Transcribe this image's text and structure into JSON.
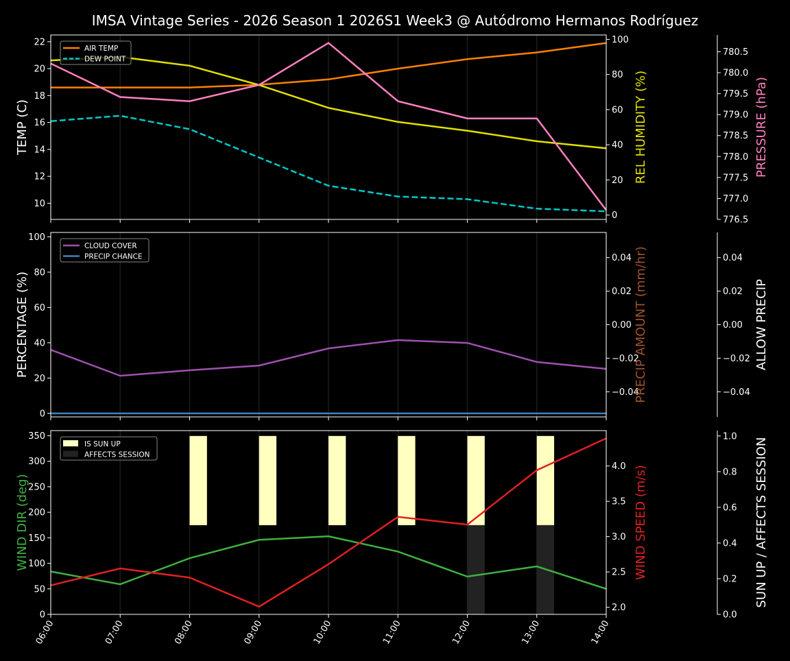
{
  "title": "IMSA Vintage Series - 2026 Season 1 2026S1 Week3 @ Autódromo Hermanos Rodríguez",
  "chart_data": [
    {
      "type": "line",
      "x": [
        "06:00",
        "07:00",
        "08:00",
        "09:00",
        "10:00",
        "11:00",
        "12:00",
        "13:00",
        "14:00"
      ],
      "left_axis": {
        "label": "TEMP (C)",
        "ylim": [
          8.8,
          22.5
        ],
        "ticks": [
          10,
          12,
          14,
          16,
          18,
          20,
          22
        ],
        "color": "#ffffff"
      },
      "right_axis": {
        "label": "REL HUMIDITY (%)",
        "ylim": [
          -2.5,
          102.5
        ],
        "ticks": [
          0,
          20,
          40,
          60,
          80,
          100
        ],
        "color": "#e0e000"
      },
      "right_axis_2": {
        "label": "PRESSURE (hPa)",
        "ylim": [
          776.5,
          780.9
        ],
        "ticks": [
          776.5,
          777.0,
          777.5,
          778.0,
          778.5,
          779.0,
          779.5,
          780.0,
          780.5
        ],
        "color": "#ff80c0"
      },
      "legend": {
        "placement": "top-left",
        "entries": [
          "AIR TEMP",
          "DEW POINT"
        ]
      },
      "grid": "vertical",
      "series": [
        {
          "name": "AIR TEMP",
          "axis": "left",
          "color": "#ff8000",
          "dash": false,
          "values": [
            18.6,
            18.6,
            18.6,
            18.8,
            19.2,
            20.0,
            20.7,
            21.2,
            21.9
          ]
        },
        {
          "name": "DEW POINT",
          "axis": "left",
          "color": "#00c8c8",
          "dash": true,
          "values": [
            16.1,
            16.5,
            15.5,
            13.4,
            11.3,
            10.5,
            10.3,
            9.6,
            9.4
          ]
        },
        {
          "axis": "right",
          "color": "#e0e000",
          "dash": false,
          "values": [
            88,
            90,
            85,
            74,
            61,
            53,
            48,
            42,
            38
          ]
        },
        {
          "axis": "right2",
          "color": "#ff80c0",
          "dash": false,
          "values": [
            780.22,
            779.42,
            779.32,
            779.71,
            780.71,
            779.32,
            778.91,
            778.91,
            776.72
          ]
        }
      ]
    },
    {
      "type": "line",
      "x": [
        "06:00",
        "07:00",
        "08:00",
        "09:00",
        "10:00",
        "11:00",
        "12:00",
        "13:00",
        "14:00"
      ],
      "left_axis": {
        "label": "PERCENTAGE (%)",
        "ylim": [
          -2,
          102.5
        ],
        "ticks": [
          0,
          20,
          40,
          60,
          80,
          100
        ],
        "color": "#ffffff"
      },
      "right_axis": {
        "label": "PRECIP AMOUNT (mm/hr)",
        "ylim": [
          -0.055,
          0.055
        ],
        "ticks": [
          -0.04,
          -0.02,
          0.0,
          0.02,
          0.04
        ],
        "tick_labels": [
          "−0.04",
          "−0.02",
          "0.00",
          "0.02",
          "0.04"
        ],
        "color": "#a0522d"
      },
      "right_axis_2": {
        "label": "ALLOW PRECIP",
        "ylim": [
          -0.055,
          0.055
        ],
        "ticks": [
          -0.04,
          -0.02,
          0.0,
          0.02,
          0.04
        ],
        "tick_labels": [
          "−0.04",
          "−0.02",
          "0.00",
          "0.02",
          "0.04"
        ],
        "color": "#ffffff"
      },
      "legend": {
        "placement": "top-left",
        "entries": [
          "CLOUD COVER",
          "PRECIP CHANCE"
        ]
      },
      "grid": "vertical",
      "series": [
        {
          "name": "CLOUD COVER",
          "axis": "left",
          "color": "#a050b0",
          "dash": false,
          "values": [
            36.0,
            21.3,
            24.4,
            27.1,
            36.8,
            41.5,
            39.9,
            29.1,
            25.2
          ]
        },
        {
          "name": "PRECIP CHANCE",
          "axis": "left",
          "color": "#4080c0",
          "dash": false,
          "values": [
            0,
            0,
            0,
            0,
            0,
            0,
            0,
            0,
            0
          ]
        }
      ]
    },
    {
      "type": "line",
      "x": [
        "06:00",
        "07:00",
        "08:00",
        "09:00",
        "10:00",
        "11:00",
        "12:00",
        "13:00",
        "14:00"
      ],
      "left_axis": {
        "label": "WIND DIR (deg)",
        "ylim": [
          0,
          360
        ],
        "ticks": [
          0,
          50,
          100,
          150,
          200,
          250,
          300,
          350
        ],
        "color": "#40b040"
      },
      "right_axis": {
        "label": "WIND SPEED (m/s)",
        "ylim": [
          1.9,
          4.5
        ],
        "ticks": [
          2.0,
          2.5,
          3.0,
          3.5,
          4.0
        ],
        "color": "#e02020"
      },
      "right_axis_2": {
        "label": "SUN UP / AFFECTS SESSION",
        "ylim": [
          0,
          1.03
        ],
        "ticks": [
          0.0,
          0.2,
          0.4,
          0.6,
          0.8,
          1.0
        ],
        "color": "#ffffff"
      },
      "legend": {
        "placement": "top-left",
        "entries": [
          "IS SUN UP",
          "AFFECTS SESSION"
        ]
      },
      "grid": "vertical",
      "bars": [
        {
          "name": "IS SUN UP",
          "color": "#ffffc0",
          "values": [
            0,
            0,
            1,
            1,
            1,
            1,
            1,
            1,
            0
          ]
        },
        {
          "name": "AFFECTS SESSION",
          "color": "#222222",
          "values": [
            0,
            0,
            0,
            0,
            0,
            0,
            1,
            1,
            0
          ]
        }
      ],
      "series": [
        {
          "axis": "left",
          "color": "#40b040",
          "dash": false,
          "values": [
            84,
            59,
            110,
            146,
            153,
            123,
            74,
            94,
            50
          ]
        },
        {
          "axis": "right",
          "color": "#e02020",
          "dash": false,
          "values": [
            2.31,
            2.55,
            2.42,
            2.01,
            2.61,
            3.28,
            3.17,
            3.94,
            4.39
          ]
        }
      ]
    }
  ]
}
